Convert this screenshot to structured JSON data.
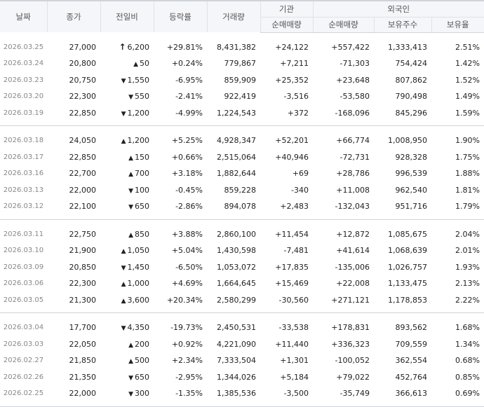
{
  "headers": {
    "date": "날짜",
    "close": "종가",
    "change": "전일비",
    "rate": "등락률",
    "volume": "거래량",
    "institution": "기관",
    "foreign": "외국인",
    "inst_net": "순매매량",
    "foreign_net": "순매매량",
    "foreign_hold": "보유주수",
    "foreign_ratio": "보유율"
  },
  "colors": {
    "up": "#d8282f",
    "down": "#1f5bc6"
  },
  "groups": [
    [
      {
        "date": "2026.03.25",
        "close": "27,000",
        "dir": "uplimit",
        "change": "6,200",
        "rate": "+29.81%",
        "volume": "8,431,382",
        "inst": "+24,122",
        "foreign": "+557,422",
        "hold": "1,333,413",
        "ratio": "2.51%"
      },
      {
        "date": "2026.03.24",
        "close": "20,800",
        "dir": "up",
        "change": "50",
        "rate": "+0.24%",
        "volume": "779,867",
        "inst": "+7,211",
        "foreign": "-71,303",
        "hold": "754,424",
        "ratio": "1.42%"
      },
      {
        "date": "2026.03.23",
        "close": "20,750",
        "dir": "down",
        "change": "1,550",
        "rate": "-6.95%",
        "volume": "859,909",
        "inst": "+25,352",
        "foreign": "+23,648",
        "hold": "807,862",
        "ratio": "1.52%"
      },
      {
        "date": "2026.03.20",
        "close": "22,300",
        "dir": "down",
        "change": "550",
        "rate": "-2.41%",
        "volume": "922,419",
        "inst": "-3,516",
        "foreign": "-53,580",
        "hold": "790,498",
        "ratio": "1.49%"
      },
      {
        "date": "2026.03.19",
        "close": "22,850",
        "dir": "down",
        "change": "1,200",
        "rate": "-4.99%",
        "volume": "1,224,543",
        "inst": "+372",
        "foreign": "-168,096",
        "hold": "845,296",
        "ratio": "1.59%"
      }
    ],
    [
      {
        "date": "2026.03.18",
        "close": "24,050",
        "dir": "up",
        "change": "1,200",
        "rate": "+5.25%",
        "volume": "4,928,347",
        "inst": "+52,201",
        "foreign": "+66,774",
        "hold": "1,008,950",
        "ratio": "1.90%"
      },
      {
        "date": "2026.03.17",
        "close": "22,850",
        "dir": "up",
        "change": "150",
        "rate": "+0.66%",
        "volume": "2,515,064",
        "inst": "+40,946",
        "foreign": "-72,731",
        "hold": "928,328",
        "ratio": "1.75%"
      },
      {
        "date": "2026.03.16",
        "close": "22,700",
        "dir": "up",
        "change": "700",
        "rate": "+3.18%",
        "volume": "1,882,644",
        "inst": "+69",
        "foreign": "+28,786",
        "hold": "996,539",
        "ratio": "1.88%"
      },
      {
        "date": "2026.03.13",
        "close": "22,000",
        "dir": "down",
        "change": "100",
        "rate": "-0.45%",
        "volume": "859,228",
        "inst": "-340",
        "foreign": "+11,008",
        "hold": "962,540",
        "ratio": "1.81%"
      },
      {
        "date": "2026.03.12",
        "close": "22,100",
        "dir": "down",
        "change": "650",
        "rate": "-2.86%",
        "volume": "894,078",
        "inst": "+2,483",
        "foreign": "-132,043",
        "hold": "951,716",
        "ratio": "1.79%"
      }
    ],
    [
      {
        "date": "2026.03.11",
        "close": "22,750",
        "dir": "up",
        "change": "850",
        "rate": "+3.88%",
        "volume": "2,860,100",
        "inst": "+11,454",
        "foreign": "+12,872",
        "hold": "1,085,675",
        "ratio": "2.04%"
      },
      {
        "date": "2026.03.10",
        "close": "21,900",
        "dir": "up",
        "change": "1,050",
        "rate": "+5.04%",
        "volume": "1,430,598",
        "inst": "-7,481",
        "foreign": "+41,614",
        "hold": "1,068,639",
        "ratio": "2.01%"
      },
      {
        "date": "2026.03.09",
        "close": "20,850",
        "dir": "down",
        "change": "1,450",
        "rate": "-6.50%",
        "volume": "1,053,072",
        "inst": "+17,835",
        "foreign": "-135,006",
        "hold": "1,026,757",
        "ratio": "1.93%"
      },
      {
        "date": "2026.03.06",
        "close": "22,300",
        "dir": "up",
        "change": "1,000",
        "rate": "+4.69%",
        "volume": "1,664,645",
        "inst": "+15,469",
        "foreign": "+22,008",
        "hold": "1,133,475",
        "ratio": "2.13%"
      },
      {
        "date": "2026.03.05",
        "close": "21,300",
        "dir": "up",
        "change": "3,600",
        "rate": "+20.34%",
        "volume": "2,580,299",
        "inst": "-30,560",
        "foreign": "+271,121",
        "hold": "1,178,853",
        "ratio": "2.22%"
      }
    ],
    [
      {
        "date": "2026.03.04",
        "close": "17,700",
        "dir": "down",
        "change": "4,350",
        "rate": "-19.73%",
        "volume": "2,450,531",
        "inst": "-33,538",
        "foreign": "+178,831",
        "hold": "893,562",
        "ratio": "1.68%"
      },
      {
        "date": "2026.03.03",
        "close": "22,050",
        "dir": "up",
        "change": "200",
        "rate": "+0.92%",
        "volume": "4,221,090",
        "inst": "+11,440",
        "foreign": "+336,323",
        "hold": "709,559",
        "ratio": "1.34%"
      },
      {
        "date": "2026.02.27",
        "close": "21,850",
        "dir": "up",
        "change": "500",
        "rate": "+2.34%",
        "volume": "7,333,504",
        "inst": "+1,301",
        "foreign": "-100,052",
        "hold": "362,554",
        "ratio": "0.68%"
      },
      {
        "date": "2026.02.26",
        "close": "21,350",
        "dir": "down",
        "change": "650",
        "rate": "-2.95%",
        "volume": "1,344,026",
        "inst": "+5,184",
        "foreign": "+79,022",
        "hold": "452,764",
        "ratio": "0.85%"
      },
      {
        "date": "2026.02.25",
        "close": "22,000",
        "dir": "down",
        "change": "300",
        "rate": "-1.35%",
        "volume": "1,385,536",
        "inst": "-3,500",
        "foreign": "-35,749",
        "hold": "366,613",
        "ratio": "0.69%"
      }
    ]
  ]
}
